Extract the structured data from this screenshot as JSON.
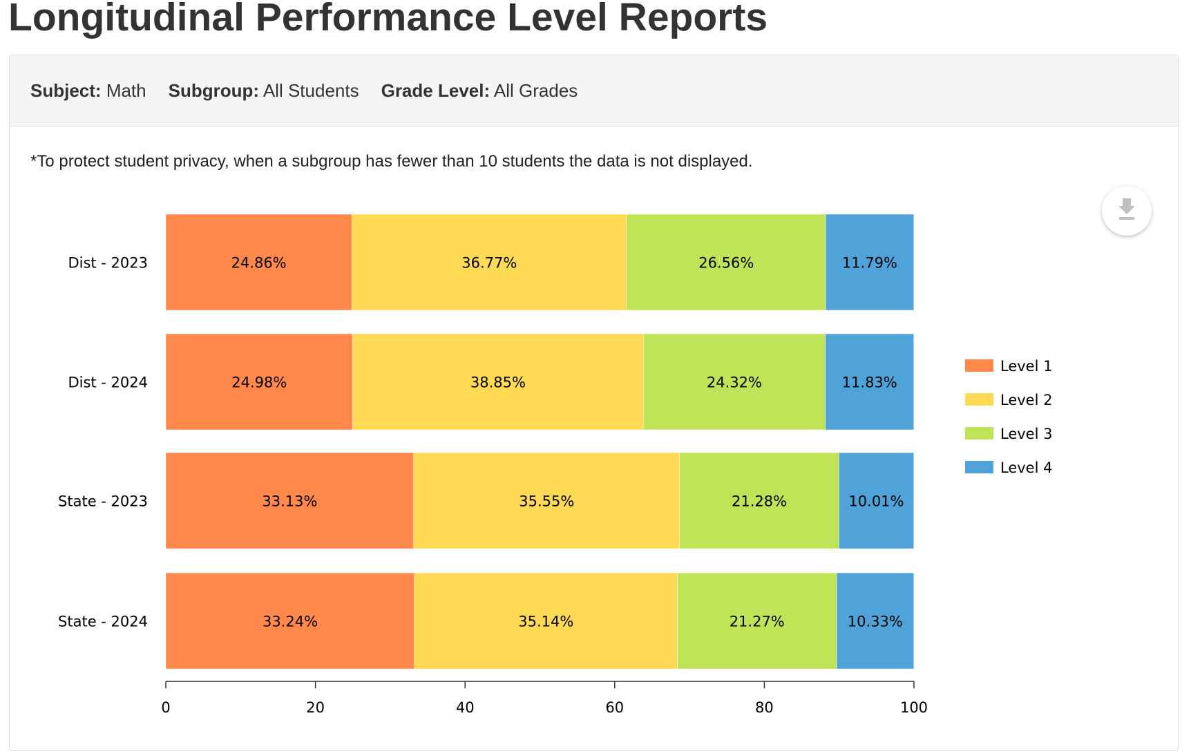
{
  "page_title": "Longitudinal Performance Level Reports",
  "filters": [
    {
      "label": "Subject:",
      "value": "Math"
    },
    {
      "label": "Subgroup:",
      "value": "All Students"
    },
    {
      "label": "Grade Level:",
      "value": "All Grades"
    }
  ],
  "note": "*To protect student privacy, when a subgroup has fewer than 10 students the data is not displayed.",
  "download_icon": "download-icon",
  "chart_data": {
    "type": "bar",
    "orientation": "horizontal",
    "stacked": true,
    "categories": [
      "Dist - 2023",
      "Dist - 2024",
      "State - 2023",
      "State - 2024"
    ],
    "series": [
      {
        "name": "Level 1",
        "color": "#ff884a",
        "values": [
          24.86,
          24.98,
          33.13,
          33.24
        ],
        "labels": [
          "24.86%",
          "24.98%",
          "33.13%",
          "33.24%"
        ]
      },
      {
        "name": "Level 2",
        "color": "#fdd954",
        "values": [
          36.77,
          38.85,
          35.55,
          35.14
        ],
        "labels": [
          "36.77%",
          "38.85%",
          "35.55%",
          "35.14%"
        ]
      },
      {
        "name": "Level 3",
        "color": "#bfe457",
        "values": [
          26.56,
          24.32,
          21.28,
          21.27
        ],
        "labels": [
          "26.56%",
          "24.32%",
          "21.28%",
          "21.27%"
        ]
      },
      {
        "name": "Level 4",
        "color": "#4fa3d9",
        "values": [
          11.79,
          11.83,
          10.01,
          10.33
        ],
        "labels": [
          "11.79%",
          "11.83%",
          "10.01%",
          "10.33%"
        ]
      }
    ],
    "xlim": [
      0,
      100
    ],
    "xticks": [
      "0",
      "20",
      "40",
      "60",
      "80",
      "100"
    ],
    "grid": false,
    "legend": "right"
  }
}
